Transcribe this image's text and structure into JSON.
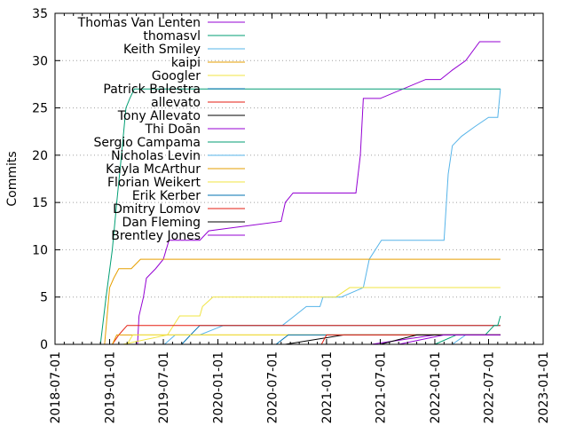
{
  "chart_data": {
    "type": "line",
    "title": "",
    "xlabel": "",
    "ylabel": "Commits",
    "x_type": "date",
    "xlim": [
      "2018-07-01",
      "2023-01-01"
    ],
    "ylim": [
      0,
      35
    ],
    "x_ticks": [
      "2018-07-01",
      "2019-01-01",
      "2019-07-01",
      "2020-01-01",
      "2020-07-01",
      "2021-01-01",
      "2021-07-01",
      "2022-01-01",
      "2022-07-01",
      "2023-01-01"
    ],
    "y_ticks": [
      0,
      5,
      10,
      15,
      20,
      25,
      30,
      35
    ],
    "grid": "horizontal dotted",
    "legend_position": "top-left",
    "series": [
      {
        "name": "Thomas Van Lenten",
        "color": "#9400d3",
        "points": [
          [
            "2019-04-05",
            0
          ],
          [
            "2019-04-10",
            3
          ],
          [
            "2019-04-25",
            5
          ],
          [
            "2019-05-05",
            7
          ],
          [
            "2019-06-05",
            8
          ],
          [
            "2019-07-01",
            9
          ],
          [
            "2019-07-20",
            11
          ],
          [
            "2019-11-01",
            11
          ],
          [
            "2019-12-01",
            12
          ],
          [
            "2020-08-01",
            13
          ],
          [
            "2020-08-15",
            15
          ],
          [
            "2020-09-10",
            16
          ],
          [
            "2021-02-15",
            16
          ],
          [
            "2021-04-10",
            16
          ],
          [
            "2021-04-25",
            20
          ],
          [
            "2021-05-05",
            26
          ],
          [
            "2021-07-01",
            26
          ],
          [
            "2021-12-01",
            28
          ],
          [
            "2022-01-20",
            28
          ],
          [
            "2022-03-01",
            29
          ],
          [
            "2022-04-15",
            30
          ],
          [
            "2022-06-01",
            32
          ],
          [
            "2022-08-10",
            32
          ]
        ]
      },
      {
        "name": "thomasvl",
        "color": "#009e73",
        "points": [
          [
            "2018-12-01",
            0
          ],
          [
            "2018-12-20",
            5
          ],
          [
            "2019-01-10",
            10
          ],
          [
            "2019-01-25",
            15
          ],
          [
            "2019-02-10",
            20
          ],
          [
            "2019-02-25",
            25
          ],
          [
            "2019-03-10",
            26
          ],
          [
            "2019-03-25",
            27
          ],
          [
            "2022-07-01",
            27
          ],
          [
            "2022-08-10",
            27
          ]
        ]
      },
      {
        "name": "Keith Smiley",
        "color": "#56b4e9",
        "points": [
          [
            "2019-07-05",
            0
          ],
          [
            "2019-08-10",
            1
          ],
          [
            "2019-11-01",
            1
          ],
          [
            "2020-01-20",
            2
          ],
          [
            "2020-08-05",
            2
          ],
          [
            "2020-09-15",
            3
          ],
          [
            "2020-10-25",
            4
          ],
          [
            "2020-12-10",
            4
          ],
          [
            "2020-12-20",
            5
          ],
          [
            "2021-02-20",
            5
          ],
          [
            "2021-05-05",
            6
          ],
          [
            "2021-05-25",
            9
          ],
          [
            "2021-07-05",
            11
          ],
          [
            "2021-12-01",
            11
          ],
          [
            "2022-02-01",
            11
          ],
          [
            "2022-02-15",
            18
          ],
          [
            "2022-03-01",
            21
          ],
          [
            "2022-04-01",
            22
          ],
          [
            "2022-05-15",
            23
          ],
          [
            "2022-07-01",
            24
          ],
          [
            "2022-08-01",
            24
          ],
          [
            "2022-08-10",
            27
          ]
        ]
      },
      {
        "name": "kaipi",
        "color": "#e69f00",
        "points": [
          [
            "2018-12-15",
            0
          ],
          [
            "2019-01-01",
            6
          ],
          [
            "2019-01-15",
            7
          ],
          [
            "2019-02-01",
            8
          ],
          [
            "2019-03-15",
            8
          ],
          [
            "2019-04-15",
            9
          ],
          [
            "2022-08-10",
            9
          ]
        ]
      },
      {
        "name": "Googler",
        "color": "#f0e442",
        "points": [
          [
            "2019-02-15",
            0
          ],
          [
            "2019-07-15",
            1
          ],
          [
            "2019-08-25",
            3
          ],
          [
            "2019-11-01",
            3
          ],
          [
            "2019-11-10",
            4
          ],
          [
            "2019-12-15",
            5
          ],
          [
            "2021-02-01",
            5
          ],
          [
            "2021-03-20",
            6
          ],
          [
            "2022-08-10",
            6
          ]
        ]
      },
      {
        "name": "Patrick Balestra",
        "color": "#0072b2",
        "points": [
          [
            "2019-09-01",
            0
          ],
          [
            "2019-10-01",
            1
          ],
          [
            "2019-11-01",
            2
          ],
          [
            "2022-08-10",
            2
          ]
        ]
      },
      {
        "name": "allevato",
        "color": "#e51e10",
        "points": [
          [
            "2019-01-10",
            0
          ],
          [
            "2019-02-01",
            1
          ],
          [
            "2019-03-01",
            2
          ],
          [
            "2022-08-10",
            2
          ]
        ]
      },
      {
        "name": "Tony Allevato",
        "color": "#000000",
        "points": [
          [
            "2020-08-15",
            0
          ],
          [
            "2021-03-01",
            1
          ],
          [
            "2022-08-10",
            1
          ]
        ]
      },
      {
        "name": "Thi Doãn",
        "color": "#9400d3",
        "points": [
          [
            "2021-06-01",
            0
          ],
          [
            "2022-01-01",
            1
          ],
          [
            "2022-08-10",
            1
          ]
        ]
      },
      {
        "name": "Sergio Campama",
        "color": "#009e73",
        "points": [
          [
            "2022-01-01",
            0
          ],
          [
            "2022-03-15",
            1
          ],
          [
            "2022-06-20",
            1
          ],
          [
            "2022-07-20",
            2
          ],
          [
            "2022-08-01",
            2
          ],
          [
            "2022-08-10",
            3
          ]
        ]
      },
      {
        "name": "Nicholas Levin",
        "color": "#56b4e9",
        "points": [
          [
            "2022-03-01",
            0
          ],
          [
            "2022-04-15",
            1
          ],
          [
            "2022-08-10",
            1
          ]
        ]
      },
      {
        "name": "Kayla McArthur",
        "color": "#e69f00",
        "points": [
          [
            "2019-01-10",
            0
          ],
          [
            "2019-01-25",
            1
          ],
          [
            "2022-08-10",
            1
          ]
        ]
      },
      {
        "name": "Florian Weikert",
        "color": "#f0e442",
        "points": [
          [
            "2019-03-01",
            0
          ],
          [
            "2019-03-20",
            1
          ],
          [
            "2022-08-10",
            1
          ]
        ]
      },
      {
        "name": "Erik Kerber",
        "color": "#0072b2",
        "points": [
          [
            "2020-07-15",
            0
          ],
          [
            "2020-08-25",
            1
          ],
          [
            "2022-08-10",
            1
          ]
        ]
      },
      {
        "name": "Dmitry Lomov",
        "color": "#e51e10",
        "points": [
          [
            "2020-12-15",
            0
          ],
          [
            "2021-01-01",
            1
          ],
          [
            "2022-08-10",
            1
          ]
        ]
      },
      {
        "name": "Dan Fleming",
        "color": "#000000",
        "points": [
          [
            "2021-07-01",
            0
          ],
          [
            "2021-11-01",
            1
          ],
          [
            "2022-08-10",
            1
          ]
        ]
      },
      {
        "name": "Brentley Jones",
        "color": "#9400d3",
        "points": [
          [
            "2021-09-01",
            0
          ],
          [
            "2022-02-01",
            1
          ],
          [
            "2022-08-10",
            1
          ]
        ]
      }
    ]
  }
}
